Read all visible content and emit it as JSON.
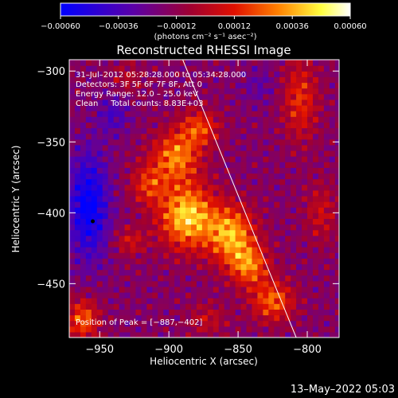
{
  "window": {
    "timestamp": "13–May–2022 05:03"
  },
  "colorbar": {
    "ticks": [
      "−0.00060",
      "−0.00036",
      "−0.00012",
      "0.00012",
      "0.00036",
      "0.00060"
    ],
    "tick_values": [
      -0.0006,
      -0.00036,
      -0.00012,
      0.00012,
      0.00036,
      0.0006
    ],
    "range": [
      -0.0006,
      0.0006
    ],
    "unit_label": "(photons cm⁻² s⁻¹ asec⁻²)",
    "colors": [
      "#0000ff",
      "#5a00a8",
      "#a00030",
      "#e01000",
      "#ff8000",
      "#ffff40",
      "#ffffff"
    ]
  },
  "annotations": {
    "line1": "31–Jul–2012 05:28:28.000 to 05:34:28.000",
    "line2": "Detectors: 3F 5F 6F 7F 8F, Att 0",
    "line3": "Energy Range: 12.0 – 25.0 keV",
    "line4": "Clean     Total counts: 8.83E+03",
    "peak": "Position of Peak = [−887,−402]"
  },
  "chart_data": {
    "type": "heatmap",
    "title": "Reconstructed RHESSI Image",
    "xlabel": "Heliocentric X (arcsec)",
    "ylabel": "Heliocentric Y (arcsec)",
    "xlim": [
      -972,
      -777
    ],
    "ylim": [
      -488,
      -292
    ],
    "x_ticks": [
      -950,
      -900,
      -850,
      -800
    ],
    "x_tick_labels": [
      "−950",
      "−900",
      "−850",
      "−800"
    ],
    "y_ticks": [
      -300,
      -350,
      -400,
      -450
    ],
    "y_tick_labels": [
      "−300",
      "−350",
      "−400",
      "−450"
    ],
    "peak": {
      "x": -887,
      "y": -402
    },
    "limb_line": [
      [
        -890,
        -292
      ],
      [
        -808,
        -488
      ]
    ],
    "marker": {
      "x": -955,
      "y": -406
    },
    "sources": [
      {
        "x": -887,
        "y": -402,
        "amp": 0.0006,
        "sx": 14,
        "sy": 16
      },
      {
        "x": -895,
        "y": -360,
        "amp": 0.00045,
        "sx": 12,
        "sy": 12
      },
      {
        "x": -878,
        "y": -340,
        "amp": 0.00035,
        "sx": 10,
        "sy": 9
      },
      {
        "x": -855,
        "y": -415,
        "amp": 0.00052,
        "sx": 12,
        "sy": 14
      },
      {
        "x": -842,
        "y": -437,
        "amp": 0.00042,
        "sx": 10,
        "sy": 10
      },
      {
        "x": -825,
        "y": -462,
        "amp": 0.0004,
        "sx": 11,
        "sy": 10
      },
      {
        "x": -915,
        "y": -380,
        "amp": 0.0003,
        "sx": 9,
        "sy": 10
      },
      {
        "x": -928,
        "y": -420,
        "amp": 0.00022,
        "sx": 8,
        "sy": 7
      },
      {
        "x": -805,
        "y": -320,
        "amp": 0.0003,
        "sx": 9,
        "sy": 20
      },
      {
        "x": -790,
        "y": -400,
        "amp": 0.0002,
        "sx": 8,
        "sy": 15
      },
      {
        "x": -962,
        "y": -475,
        "amp": 0.0004,
        "sx": 8,
        "sy": 10
      },
      {
        "x": -872,
        "y": -475,
        "amp": 0.00018,
        "sx": 10,
        "sy": 8
      },
      {
        "x": -930,
        "y": -305,
        "amp": 0.00015,
        "sx": 8,
        "sy": 8
      },
      {
        "x": -958,
        "y": -395,
        "amp": -0.00045,
        "sx": 10,
        "sy": 26
      },
      {
        "x": -940,
        "y": -330,
        "amp": -0.0002,
        "sx": 8,
        "sy": 10
      },
      {
        "x": -835,
        "y": -310,
        "amp": -0.00012,
        "sx": 9,
        "sy": 9
      }
    ]
  }
}
